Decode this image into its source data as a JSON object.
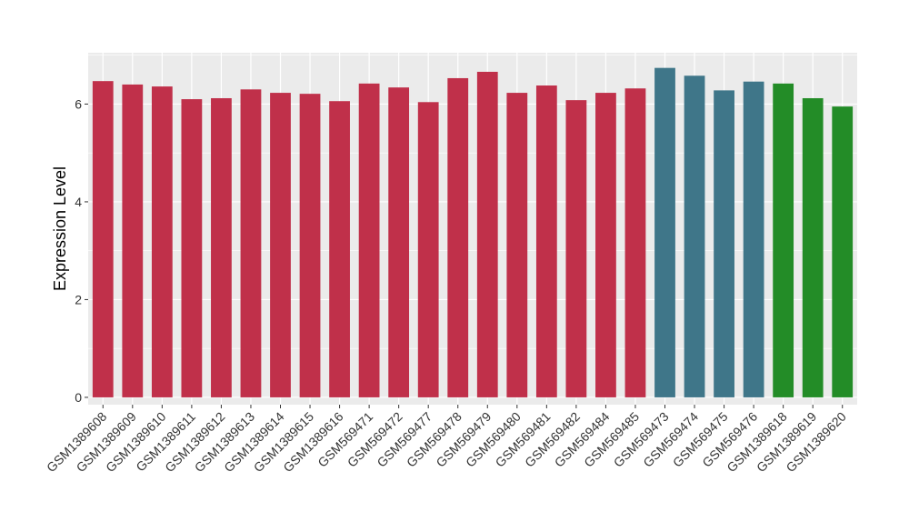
{
  "chart_data": {
    "type": "bar",
    "title": "",
    "xlabel": "",
    "ylabel": "Expression Level",
    "ylim": [
      -0.15,
      7.05
    ],
    "yticks": [
      0,
      2,
      4,
      6
    ],
    "grid": true,
    "legend": "none",
    "categories": [
      "GSM1389608",
      "GSM1389609",
      "GSM1389610",
      "GSM1389611",
      "GSM1389612",
      "GSM1389613",
      "GSM1389614",
      "GSM1389615",
      "GSM1389616",
      "GSM569471",
      "GSM569472",
      "GSM569477",
      "GSM569478",
      "GSM569479",
      "GSM569480",
      "GSM569481",
      "GSM569482",
      "GSM569484",
      "GSM569485",
      "GSM569473",
      "GSM569474",
      "GSM569475",
      "GSM569476",
      "GSM1389618",
      "GSM1389619",
      "GSM1389620"
    ],
    "values": [
      6.47,
      6.4,
      6.36,
      6.1,
      6.12,
      6.3,
      6.23,
      6.21,
      6.06,
      6.42,
      6.34,
      6.04,
      6.53,
      6.66,
      6.23,
      6.38,
      6.08,
      6.23,
      6.32,
      6.74,
      6.58,
      6.28,
      6.46,
      6.42,
      6.12,
      5.95
    ],
    "colors": [
      "#c0304a",
      "#c0304a",
      "#c0304a",
      "#c0304a",
      "#c0304a",
      "#c0304a",
      "#c0304a",
      "#c0304a",
      "#c0304a",
      "#c0304a",
      "#c0304a",
      "#c0304a",
      "#c0304a",
      "#c0304a",
      "#c0304a",
      "#c0304a",
      "#c0304a",
      "#c0304a",
      "#c0304a",
      "#3f7689",
      "#3f7689",
      "#3f7689",
      "#3f7689",
      "#238c27",
      "#238c27",
      "#238c27"
    ],
    "panel_background": "#ebebeb",
    "grid_color": "#ffffff"
  }
}
